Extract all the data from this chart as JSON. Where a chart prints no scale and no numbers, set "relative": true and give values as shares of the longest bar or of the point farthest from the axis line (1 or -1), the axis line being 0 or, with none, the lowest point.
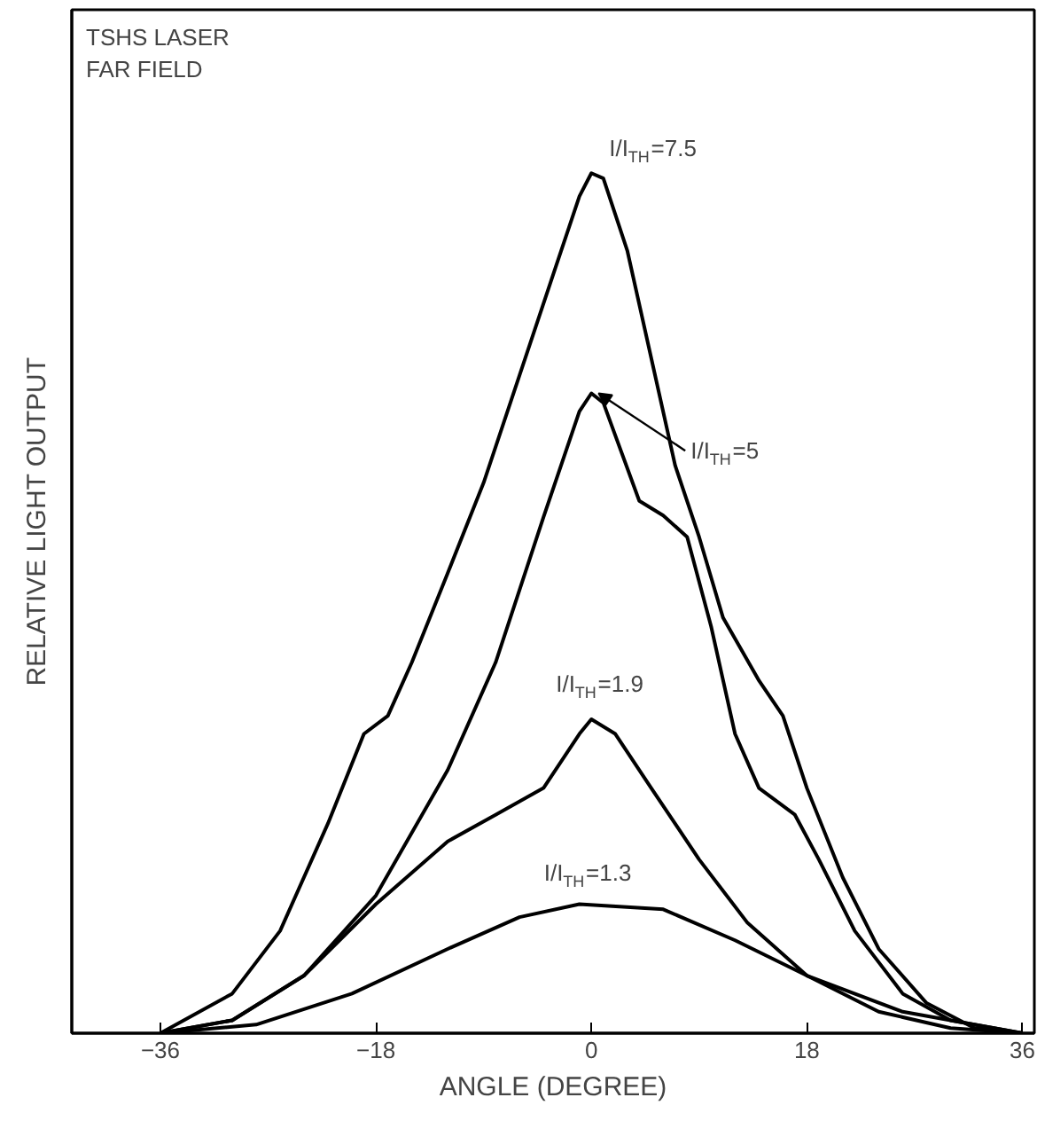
{
  "chart_data": {
    "type": "line",
    "title": "TSHS LASER\nFAR FIELD",
    "xlabel": "ANGLE (DEGREE)",
    "ylabel": "RELATIVE LIGHT OUTPUT",
    "relative": true,
    "xlim": [
      -43.4,
      37
    ],
    "xticks": [
      -36,
      -18,
      0,
      18,
      36
    ],
    "grid": false,
    "marker": "none",
    "line_style": "solid",
    "series": [
      {
        "name": "I/I$_{TH}$=7.5",
        "color": "#000000",
        "x": [
          -36,
          -30,
          -26,
          -22,
          -19,
          -17,
          -15,
          -12,
          -9,
          -6,
          -3,
          -1,
          0,
          1,
          3,
          5,
          7,
          9,
          11,
          14,
          16,
          18,
          21,
          24,
          28,
          32,
          36
        ],
        "values": [
          0,
          0.046,
          0.119,
          0.244,
          0.348,
          0.369,
          0.431,
          0.535,
          0.64,
          0.765,
          0.89,
          0.973,
          1,
          0.994,
          0.91,
          0.785,
          0.66,
          0.577,
          0.483,
          0.41,
          0.369,
          0.285,
          0.181,
          0.098,
          0.035,
          0.006,
          0
        ]
      },
      {
        "name": "I/I$_{TH}$=5",
        "color": "#000000",
        "x": [
          -36,
          -30,
          -24,
          -18,
          -12,
          -8,
          -4,
          -1,
          0,
          1,
          4,
          6,
          8,
          10,
          12,
          14,
          17,
          19,
          22,
          26,
          30,
          36
        ],
        "values": [
          0,
          0.015,
          0.067,
          0.16,
          0.306,
          0.431,
          0.6,
          0.723,
          0.744,
          0.733,
          0.619,
          0.602,
          0.577,
          0.473,
          0.348,
          0.285,
          0.254,
          0.202,
          0.119,
          0.046,
          0.015,
          0
        ]
      },
      {
        "name": "I/I$_{TH}$=1.9",
        "color": "#000000",
        "x": [
          -36,
          -30,
          -24,
          -18,
          -12,
          -8,
          -4,
          -1,
          0,
          2,
          5,
          9,
          13,
          18,
          24,
          30,
          36
        ],
        "values": [
          0,
          0.015,
          0.067,
          0.15,
          0.223,
          0.254,
          0.285,
          0.348,
          0.365,
          0.348,
          0.285,
          0.202,
          0.129,
          0.067,
          0.025,
          0.006,
          0
        ]
      },
      {
        "name": "I/I$_{TH}$=1.3",
        "color": "#000000",
        "x": [
          -36,
          -28,
          -20,
          -12,
          -6,
          -1,
          6,
          12,
          18,
          26,
          36
        ],
        "values": [
          0,
          0.01,
          0.046,
          0.098,
          0.135,
          0.15,
          0.144,
          0.108,
          0.067,
          0.025,
          0
        ]
      }
    ]
  }
}
